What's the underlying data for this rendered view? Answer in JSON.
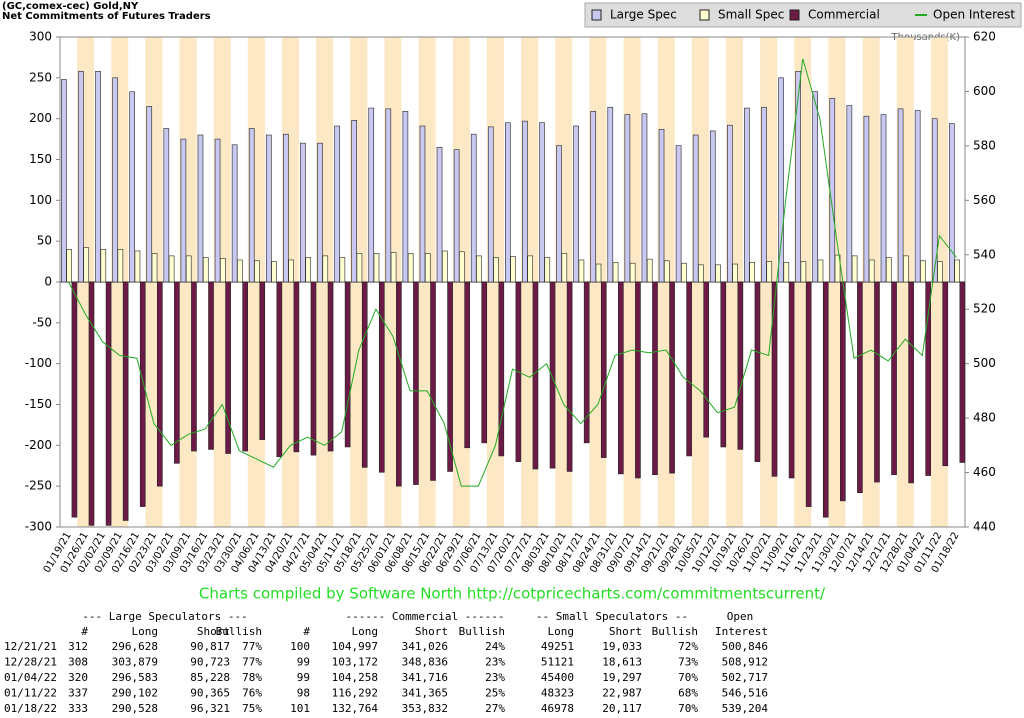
{
  "chart_data": {
    "type": "bar",
    "title": "(GC,comex-cec) Gold,NY",
    "subtitle": "Net Commitments of Futures Traders",
    "y2_label": "Thousands(K)",
    "credit": "Charts compiled by Software North  http://cotpricecharts.com/commitmentscurrent/",
    "legend_position": "top-right",
    "categories": [
      "01/19/21",
      "01/26/21",
      "02/02/21",
      "02/09/21",
      "02/16/21",
      "02/23/21",
      "03/02/21",
      "03/09/21",
      "03/16/21",
      "03/23/21",
      "03/30/21",
      "04/06/21",
      "04/13/21",
      "04/20/21",
      "04/27/21",
      "05/04/21",
      "05/11/21",
      "05/18/21",
      "05/25/21",
      "06/01/21",
      "06/08/21",
      "06/15/21",
      "06/22/21",
      "06/29/21",
      "07/06/21",
      "07/13/21",
      "07/20/21",
      "07/27/21",
      "08/03/21",
      "08/10/21",
      "08/17/21",
      "08/24/21",
      "08/31/21",
      "09/07/21",
      "09/14/21",
      "09/21/21",
      "09/28/21",
      "10/05/21",
      "10/12/21",
      "10/19/21",
      "10/26/21",
      "11/02/21",
      "11/09/21",
      "11/16/21",
      "11/23/21",
      "11/30/21",
      "12/07/21",
      "12/14/21",
      "12/21/21",
      "12/28/21",
      "01/04/22",
      "01/11/22",
      "01/18/22"
    ],
    "series": [
      {
        "name": "Large Spec",
        "color": "#c8c8f0",
        "values": [
          248,
          258,
          258,
          250,
          233,
          215,
          188,
          175,
          180,
          175,
          168,
          188,
          180,
          181,
          170,
          170,
          191,
          198,
          213,
          212,
          209,
          191,
          165,
          162,
          181,
          190,
          195,
          197,
          195,
          167,
          191,
          209,
          214,
          205,
          206,
          187,
          167,
          180,
          185,
          192,
          213,
          214,
          250,
          258,
          233,
          225,
          216,
          203,
          205,
          212,
          210,
          200,
          194
        ]
      },
      {
        "name": "Small Spec",
        "color": "#ffffd0",
        "values": [
          40,
          42,
          40,
          40,
          38,
          35,
          32,
          32,
          30,
          29,
          27,
          26,
          25,
          27,
          30,
          32,
          30,
          35,
          35,
          36,
          35,
          35,
          38,
          37,
          32,
          30,
          31,
          32,
          30,
          35,
          27,
          22,
          24,
          23,
          28,
          26,
          23,
          21,
          21,
          22,
          24,
          25,
          24,
          25,
          27,
          33,
          32,
          27,
          30,
          32,
          26,
          25,
          27
        ]
      },
      {
        "name": "Commercial",
        "color": "#6b1b45",
        "values": [
          -288,
          -298,
          -298,
          -292,
          -275,
          -250,
          -222,
          -207,
          -205,
          -210,
          -207,
          -193,
          -214,
          -208,
          -212,
          -207,
          -202,
          -227,
          -233,
          -250,
          -248,
          -243,
          -232,
          -203,
          -197,
          -213,
          -220,
          -229,
          -228,
          -232,
          -197,
          -215,
          -235,
          -240,
          -236,
          -234,
          -213,
          -190,
          -202,
          -205,
          -220,
          -238,
          -240,
          -275,
          -288,
          -268,
          -258,
          -245,
          -236,
          -246,
          -237,
          -225,
          -221
        ]
      },
      {
        "name": "Open Interest",
        "color": "#22aa22",
        "axis": "y2",
        "values": [
          530,
          518,
          508,
          503,
          502,
          478,
          470,
          474,
          476,
          485,
          468,
          465,
          462,
          470,
          473,
          470,
          475,
          505,
          520,
          510,
          490,
          490,
          478,
          455,
          455,
          470,
          498,
          495,
          500,
          485,
          478,
          485,
          503,
          505,
          504,
          505,
          495,
          490,
          482,
          484,
          505,
          503,
          560,
          612,
          590,
          545,
          502,
          505,
          501,
          509,
          503,
          547,
          539
        ]
      }
    ],
    "ylim": [
      -300,
      300
    ],
    "yticks": [
      -300,
      -250,
      -200,
      -150,
      -100,
      -50,
      0,
      50,
      100,
      150,
      200,
      250,
      300
    ],
    "y2lim": [
      440,
      620
    ],
    "y2ticks": [
      440,
      460,
      480,
      500,
      520,
      540,
      560,
      580,
      600,
      620
    ],
    "grid": false
  },
  "table": {
    "groups": [
      "--- Large Speculators ---",
      "------ Commercial ------",
      "-- Small Speculators --",
      "Open"
    ],
    "columns": [
      "#",
      "Long",
      "Short",
      "Bullish",
      "#",
      "Long",
      "Short",
      "Bullish",
      "Long",
      "Short",
      "Bullish",
      "Interest"
    ],
    "rows": [
      [
        "12/21/21",
        "312",
        "296,628",
        "90,817",
        "77%",
        "100",
        "104,997",
        "341,026",
        "24%",
        "49251",
        "19,033",
        "72%",
        "500,846"
      ],
      [
        "12/28/21",
        "308",
        "303,879",
        "90,723",
        "77%",
        "99",
        "103,172",
        "348,836",
        "23%",
        "51121",
        "18,613",
        "73%",
        "508,912"
      ],
      [
        "01/04/22",
        "320",
        "296,583",
        "85,228",
        "78%",
        "99",
        "104,258",
        "341,716",
        "23%",
        "45400",
        "19,297",
        "70%",
        "502,717"
      ],
      [
        "01/11/22",
        "337",
        "290,102",
        "90,365",
        "76%",
        "98",
        "116,292",
        "341,365",
        "25%",
        "48323",
        "22,987",
        "68%",
        "546,516"
      ],
      [
        "01/18/22",
        "333",
        "290,528",
        "96,321",
        "75%",
        "101",
        "132,764",
        "353,832",
        "27%",
        "46978",
        "20,117",
        "70%",
        "539,204"
      ]
    ]
  }
}
